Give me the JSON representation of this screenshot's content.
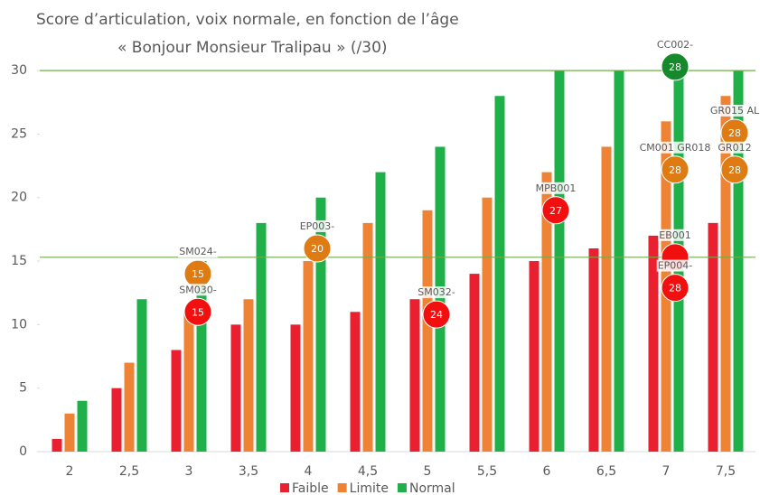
{
  "chart_data": {
    "type": "bar",
    "title": "Score d’articulation, voix normale, en fonction de l’âge",
    "subtitle": "« Bonjour Monsieur Tralipau » (/30)",
    "categories": [
      "2",
      "2,5",
      "3",
      "3,5",
      "4",
      "4,5",
      "5",
      "5,5",
      "6",
      "6,5",
      "7",
      "7,5"
    ],
    "series": [
      {
        "name": "Faible",
        "color": "#e8202f",
        "values": [
          1,
          5,
          8,
          10,
          10,
          11,
          12,
          14,
          15,
          16,
          17,
          18
        ]
      },
      {
        "name": "Limite",
        "color": "#ee8336",
        "values": [
          3,
          7,
          11,
          12,
          15,
          18,
          19,
          20,
          22,
          24,
          26,
          28
        ]
      },
      {
        "name": "Normal",
        "color": "#20b04a",
        "values": [
          4,
          12,
          15,
          18,
          20,
          22,
          24,
          28,
          30,
          30,
          30,
          30
        ]
      }
    ],
    "ylim": [
      0,
      31.5
    ],
    "yticks": [
      0,
      5,
      10,
      15,
      20,
      25,
      30
    ],
    "reference_lines": [
      30,
      15.3
    ],
    "reference_color": "#70ad47",
    "annotations": [
      {
        "x": "3",
        "y": 14,
        "label": "SM024-",
        "text": "15",
        "color": "#de7b12"
      },
      {
        "x": "3",
        "y": 11,
        "label": "SM030-",
        "text": "15",
        "color": "#f20f0f"
      },
      {
        "x": "4",
        "y": 16,
        "label": "EP003-",
        "text": "20",
        "color": "#de7b12"
      },
      {
        "x": "5",
        "y": 10.8,
        "label": "SM032-",
        "text": "24",
        "color": "#f20f0f"
      },
      {
        "x": "6",
        "y": 19,
        "label": "MPB001",
        "text": "27",
        "color": "#f20f0f"
      },
      {
        "x": "7",
        "y": 30.3,
        "label": "CC002-",
        "text": "28",
        "color": "#168a2a"
      },
      {
        "x": "7",
        "y": 15.3,
        "label": "EB001",
        "color": "#f20f0f"
      },
      {
        "x": "7",
        "y": 22.2,
        "label": "CM001 GR018",
        "text": "28",
        "color": "#de7b12"
      },
      {
        "x": "7",
        "y": 12.9,
        "label": "EP004-",
        "text": "28",
        "color": "#f20f0f"
      },
      {
        "x": "7,5",
        "y": 25.1,
        "label": "GR015 AL",
        "text": "28",
        "color": "#de7b12"
      },
      {
        "x": "7,5",
        "y": 22.2,
        "label": "GR012",
        "text": "28",
        "color": "#de7b12"
      }
    ]
  }
}
